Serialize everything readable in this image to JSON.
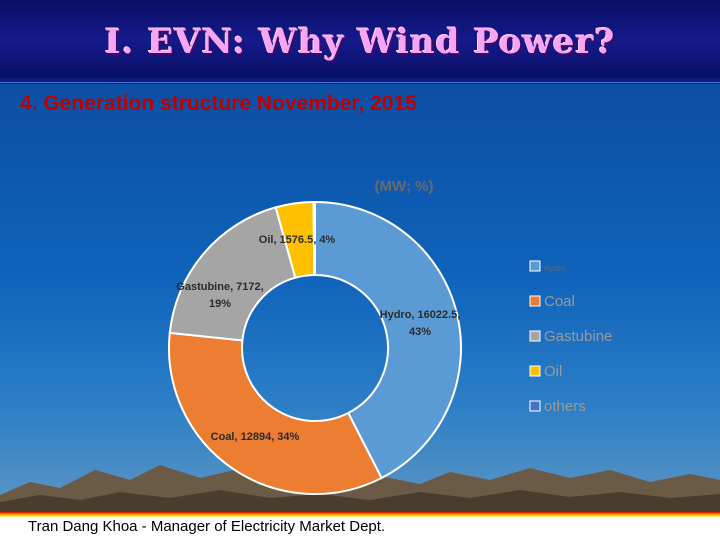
{
  "slide": {
    "title": "I. EVN: Why Wind Power?",
    "subtitle": "4. Generation structure November, 2015",
    "footer": "Tran Dang Khoa - Manager of Electricity Market Dept."
  },
  "colors": {
    "hydro": "#5b9bd5",
    "coal": "#ed7d31",
    "gastubine": "#a5a5a5",
    "oil": "#ffc000",
    "others": "#4472c4",
    "title": "#f7a4f4",
    "subtitle": "#c00000"
  },
  "chart_data": {
    "type": "pie",
    "subtype": "donut",
    "title": "(MW; %)",
    "legend_position": "right",
    "series": [
      {
        "name": "Hydro",
        "value": 16022.5,
        "percent": 43,
        "label": "Hydro, 16022.5, 43%",
        "color": "#5b9bd5"
      },
      {
        "name": "Coal",
        "value": 12894,
        "percent": 34,
        "label": "Coal, 12894, 34%",
        "color": "#ed7d31"
      },
      {
        "name": "Gastubine",
        "value": 7172,
        "percent": 19,
        "label": "Gastubine, 7172, 19%",
        "color": "#a5a5a5"
      },
      {
        "name": "Oil",
        "value": 1576.5,
        "percent": 4,
        "label": "Oil, 1576.5, 4%",
        "color": "#ffc000"
      },
      {
        "name": "others",
        "value": 60,
        "percent": 0,
        "label": "",
        "color": "#4472c4"
      }
    ],
    "legend": [
      "Hydro",
      "Coal",
      "Gastubine",
      "Oil",
      "others"
    ]
  }
}
